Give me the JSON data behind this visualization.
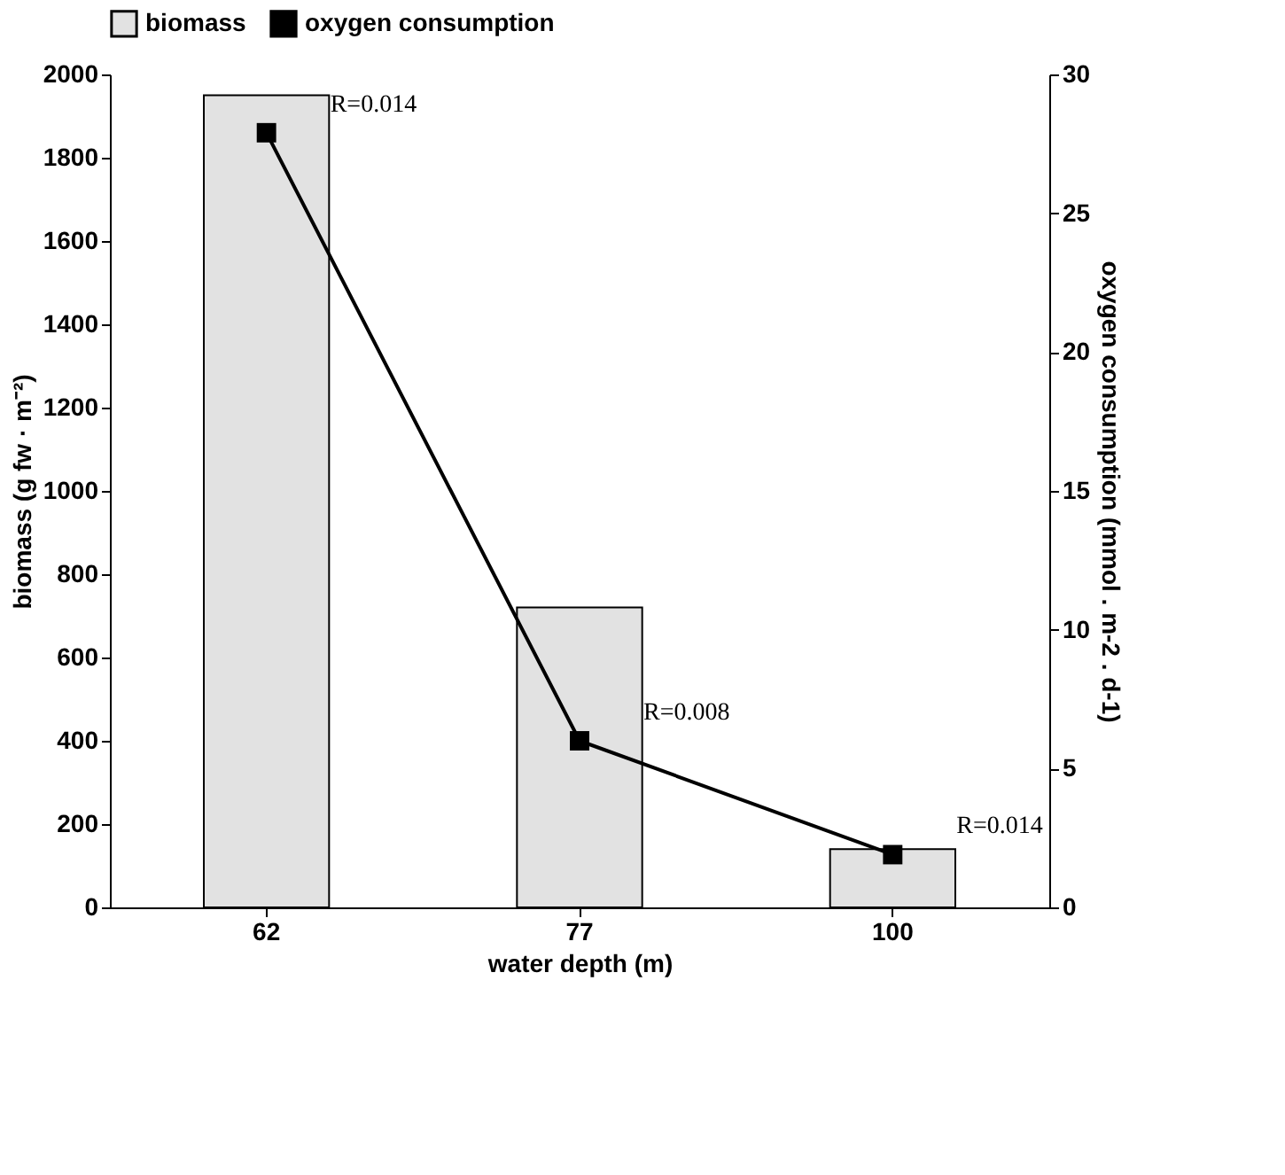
{
  "chart_data": {
    "type": "bar",
    "xlabel": "water depth (m)",
    "ylabel": "biomass (g fw · m⁻²)",
    "y2label": "oxygen consumption (mmol . m-2 . d-1)",
    "categories": [
      "62",
      "77",
      "100"
    ],
    "series": [
      {
        "name": "biomass",
        "color": "#e2e2e2",
        "values": [
          1950,
          720,
          140
        ]
      },
      {
        "name": "oxygen consumption",
        "type": "line",
        "axis": "y2",
        "color": "#000000",
        "marker": "square",
        "line_style": "solid",
        "values": [
          27.9,
          6.0,
          1.9
        ]
      }
    ],
    "ylim": [
      0,
      2000
    ],
    "yticks": [
      0,
      200,
      400,
      600,
      800,
      1000,
      1200,
      1400,
      1600,
      1800,
      2000
    ],
    "y2lim": [
      0,
      30
    ],
    "y2ticks": [
      0,
      5,
      10,
      15,
      20,
      25,
      30
    ],
    "annotations": [
      "R=0.014",
      "R=0.008",
      "R=0.014"
    ],
    "legend": "top",
    "grid": false
  }
}
